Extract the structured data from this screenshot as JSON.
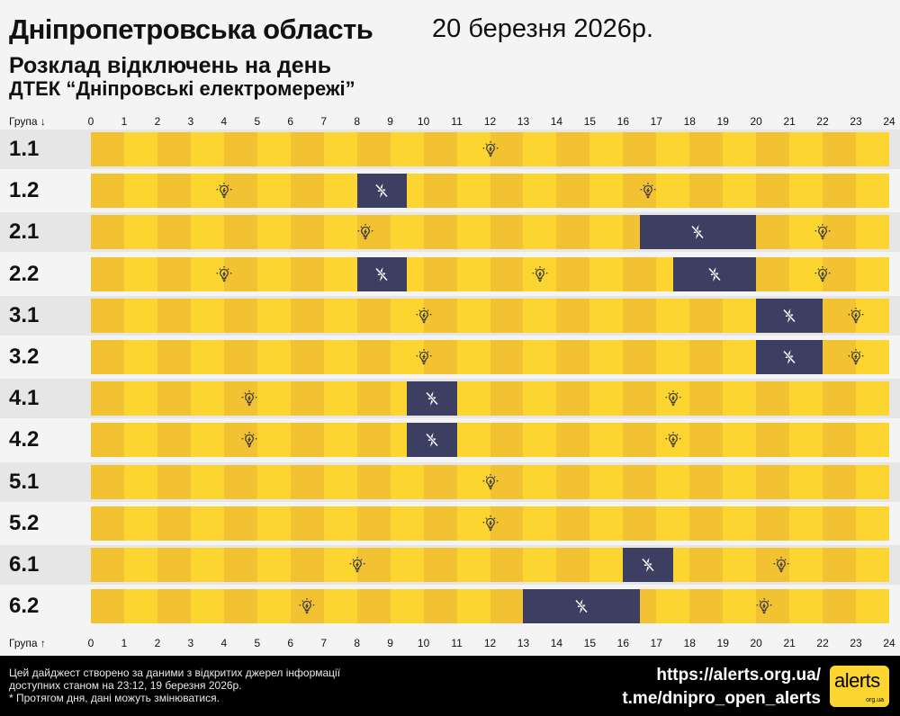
{
  "header": {
    "region": "Дніпропетровська область",
    "date": "20 березня 2026р.",
    "subtitle": "Розклад відключень на день",
    "company": "ДТЕК “Дніпровські електромережі”"
  },
  "axis": {
    "top_label": "Група ↓",
    "bottom_label": "Група ↑",
    "hours": [
      "0",
      "1",
      "2",
      "3",
      "4",
      "5",
      "6",
      "7",
      "8",
      "9",
      "10",
      "11",
      "12",
      "13",
      "14",
      "15",
      "16",
      "17",
      "18",
      "19",
      "20",
      "21",
      "22",
      "23",
      "24"
    ]
  },
  "chart_data": {
    "type": "timeline",
    "title": "Розклад відключень на день",
    "x_range": [
      0,
      24
    ],
    "x_unit": "година",
    "groups": [
      {
        "name": "1.1",
        "outages": []
      },
      {
        "name": "1.2",
        "outages": [
          [
            8,
            9.5
          ]
        ]
      },
      {
        "name": "2.1",
        "outages": [
          [
            16.5,
            20
          ]
        ]
      },
      {
        "name": "2.2",
        "outages": [
          [
            8,
            9.5
          ],
          [
            17.5,
            20
          ]
        ]
      },
      {
        "name": "3.1",
        "outages": [
          [
            20,
            22
          ]
        ]
      },
      {
        "name": "3.2",
        "outages": [
          [
            20,
            22
          ]
        ]
      },
      {
        "name": "4.1",
        "outages": [
          [
            9.5,
            11
          ]
        ]
      },
      {
        "name": "4.2",
        "outages": [
          [
            9.5,
            11
          ]
        ]
      },
      {
        "name": "5.1",
        "outages": []
      },
      {
        "name": "5.2",
        "outages": []
      },
      {
        "name": "6.1",
        "outages": [
          [
            16,
            17.5
          ]
        ]
      },
      {
        "name": "6.2",
        "outages": [
          [
            13,
            16.5
          ]
        ]
      }
    ],
    "colors": {
      "power_on": "#fdd530",
      "power_on_alt": "#f2c233",
      "power_off": "#3c3e62"
    },
    "icons": {
      "power_on": "light-bulb-icon",
      "power_off": "power-off-icon"
    }
  },
  "footer": {
    "note_line1": "Цей дайджест створено за даними з відкритих джерел інформації",
    "note_line2": "доступних станом на 23:12, 19 березня 2026р.",
    "note_line3": "* Протягом дня, дані можуть змінюватися.",
    "link1": "https://alerts.org.ua/",
    "link2": "t.me/dnipro_open_alerts",
    "logo_text": "alerts",
    "logo_sub": "org.ua"
  }
}
